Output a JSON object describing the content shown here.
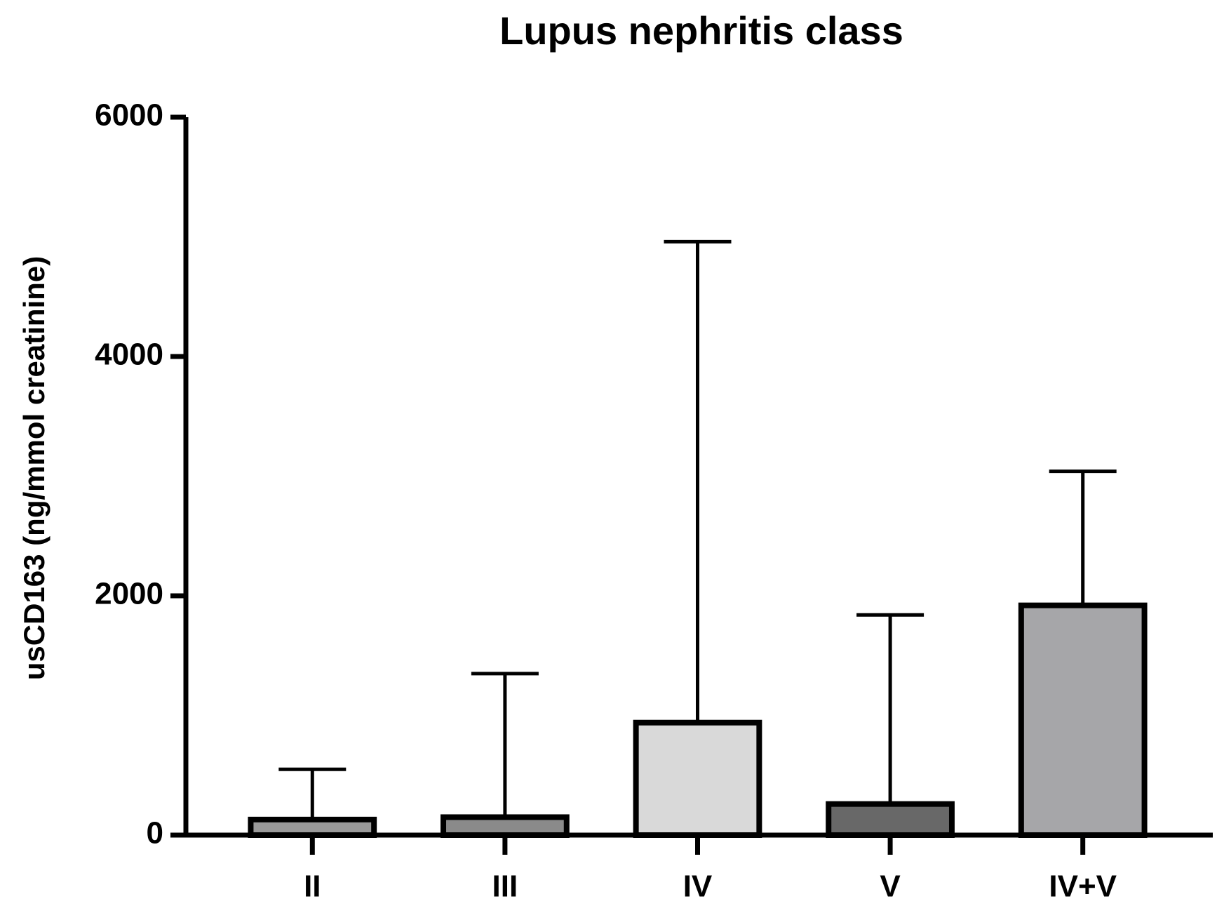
{
  "chart_data": {
    "type": "bar",
    "title": "Lupus nephritis class",
    "y_label": "usCD163 (ng/mmol creatinine)",
    "categories": [
      "II",
      "III",
      "IV",
      "V",
      "IV+V"
    ],
    "values": [
      130,
      150,
      940,
      260,
      1920
    ],
    "errors": [
      420,
      1200,
      4020,
      1580,
      1120
    ],
    "colors": [
      "#9a9a9a",
      "#8a8a8a",
      "#d9d9d9",
      "#686868",
      "#a6a6a9"
    ],
    "ylim": [
      0,
      6000
    ],
    "yticks": [
      0,
      2000,
      4000,
      6000
    ],
    "grid": false
  }
}
